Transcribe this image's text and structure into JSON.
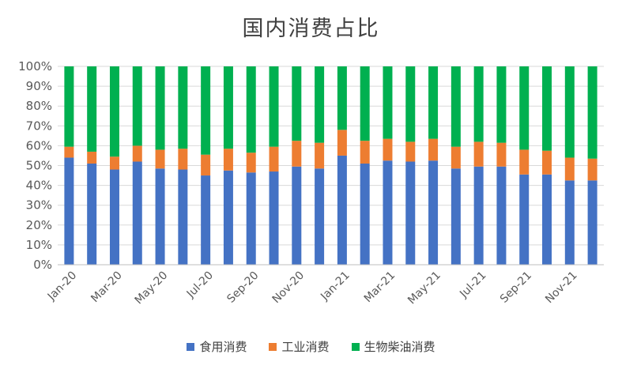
{
  "chart_data": {
    "type": "bar",
    "stacked": true,
    "title": "国内消费占比",
    "categories": [
      "Jan-20",
      "Feb-20",
      "Mar-20",
      "Apr-20",
      "May-20",
      "Jun-20",
      "Jul-20",
      "Aug-20",
      "Sep-20",
      "Oct-20",
      "Nov-20",
      "Dec-20",
      "Jan-21",
      "Feb-21",
      "Mar-21",
      "Apr-21",
      "May-21",
      "Jun-21",
      "Jul-21",
      "Aug-21",
      "Sep-21",
      "Oct-21",
      "Nov-21",
      "Dec-21"
    ],
    "x_tick_labels": [
      "Jan-20",
      "Mar-20",
      "May-20",
      "Jul-20",
      "Sep-20",
      "Nov-20",
      "Jan-21",
      "Mar-21",
      "May-21",
      "Jul-21",
      "Sep-21",
      "Nov-21"
    ],
    "y_tick_labels": [
      "0%",
      "10%",
      "20%",
      "30%",
      "40%",
      "50%",
      "60%",
      "70%",
      "80%",
      "90%",
      "100%"
    ],
    "ylim": [
      0,
      100
    ],
    "series": [
      {
        "name": "食用消费",
        "color": "#4472C4",
        "values": [
          54,
          51,
          48,
          52,
          48.5,
          48,
          45,
          47.5,
          46.5,
          47,
          49.5,
          48.5,
          55,
          51,
          52.5,
          52,
          52.5,
          48.5,
          49.5,
          49.5,
          45.5,
          45.5,
          42.5,
          42.5
        ]
      },
      {
        "name": "工业消费",
        "color": "#ED7D31",
        "values": [
          5.5,
          6,
          6.5,
          8,
          9.5,
          10.5,
          10.5,
          11,
          10,
          12.5,
          13,
          13,
          13,
          11.5,
          11,
          10,
          11,
          11,
          12.5,
          12,
          12.5,
          12,
          11.5,
          11
        ]
      },
      {
        "name": "生物柴油消费",
        "color": "#00B050",
        "values": [
          40.5,
          43,
          45.5,
          40,
          42,
          41.5,
          44.5,
          41.5,
          43.5,
          40.5,
          37.5,
          38.5,
          32,
          37.5,
          36.5,
          38,
          36.5,
          40.5,
          38,
          38.5,
          42,
          42.5,
          46,
          46.5
        ]
      }
    ],
    "xlabel": "",
    "ylabel": "",
    "grid": true,
    "legend": "bottom"
  }
}
